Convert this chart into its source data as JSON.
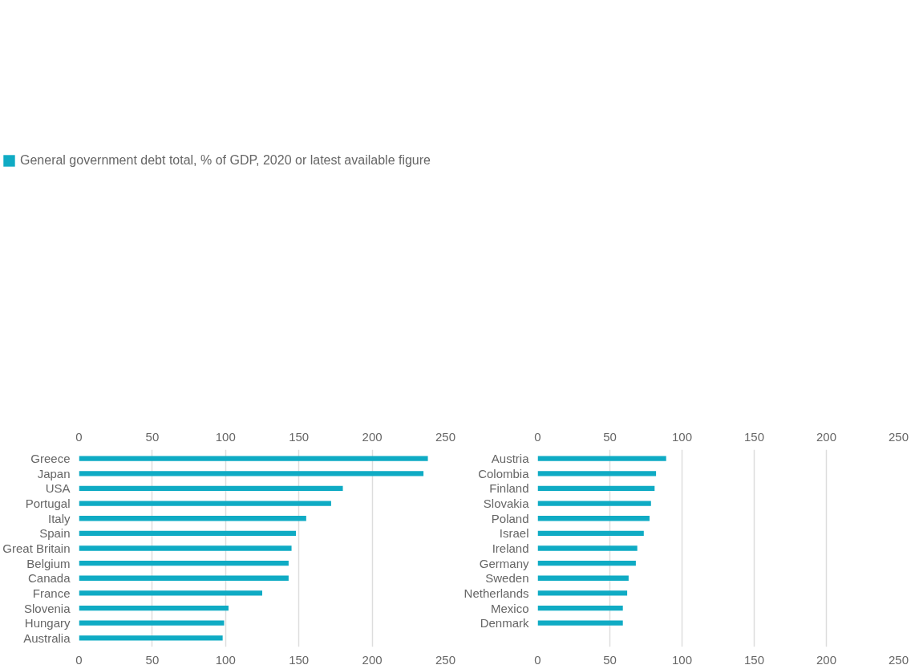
{
  "chart_data": [
    {
      "type": "bar",
      "orientation": "horizontal",
      "categories": [
        "Greece",
        "Japan",
        "USA",
        "Portugal",
        "Italy",
        "Spain",
        "Great Britain",
        "Belgium",
        "Canada",
        "France",
        "Slovenia",
        "Hungary",
        "Australia"
      ],
      "series": [
        {
          "name": "General government debt total, % of GDP, 2020 or latest available figure",
          "color": "#0fabc4",
          "values": [
            238,
            235,
            180,
            172,
            155,
            148,
            145,
            143,
            143,
            125,
            102,
            99,
            98
          ]
        }
      ],
      "xlim": [
        0,
        250
      ],
      "xticks": [
        0,
        50,
        100,
        150,
        200,
        250
      ],
      "x2lim": [
        0,
        250
      ],
      "x2ticks": [
        0,
        50,
        100,
        150,
        200,
        250
      ],
      "grid": "x",
      "legend": "top"
    },
    {
      "type": "bar",
      "orientation": "horizontal",
      "categories": [
        "Austria",
        "Colombia",
        "Finland",
        "Slovakia",
        "Poland",
        "Israel",
        "Ireland",
        "Germany",
        "Sweden",
        "Netherlands",
        "Mexico",
        "Denmark"
      ],
      "series": [
        {
          "color": "#0fabc4",
          "values": [
            89,
            82,
            81,
            78.5,
            77.5,
            73.5,
            69,
            68,
            63,
            62,
            59,
            59
          ]
        }
      ],
      "xlim": [
        0,
        250
      ],
      "xticks": [
        0,
        50,
        100,
        150,
        200,
        250
      ],
      "x2lim": [
        0,
        250
      ],
      "x2ticks": [
        0,
        50,
        100,
        150,
        200,
        250
      ],
      "grid": "x"
    }
  ]
}
